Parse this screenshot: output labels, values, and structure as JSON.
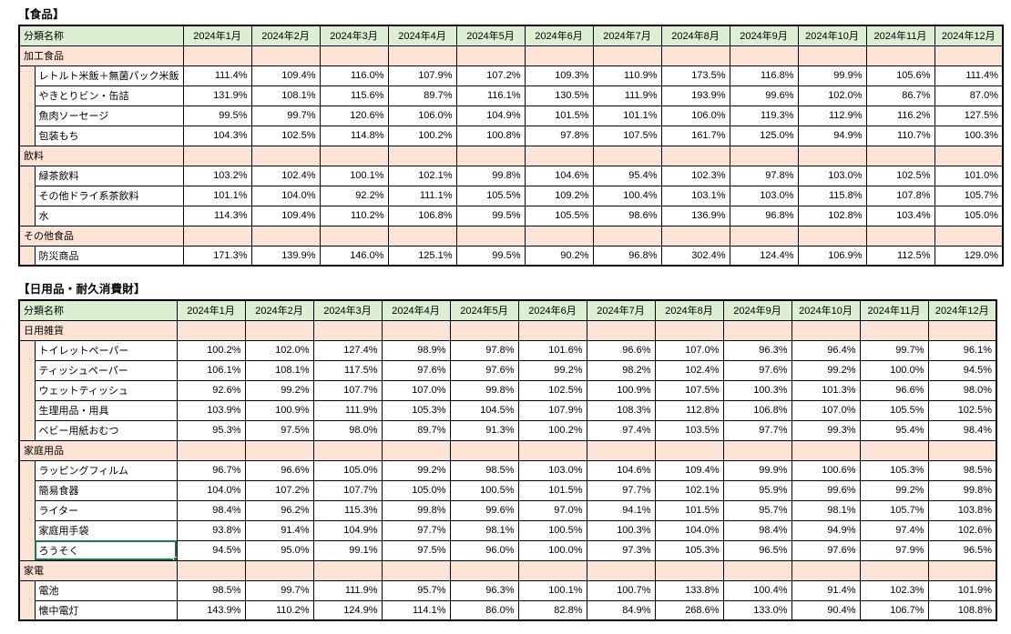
{
  "colors": {
    "header_green": "#DCEFD2",
    "category_pink": "#FCE3D6",
    "selection_green": "#217346",
    "grid_border": "#000000",
    "background": "#FFFFFF"
  },
  "columns": {
    "name_header": "分類名称",
    "months": [
      "2024年1月",
      "2024年2月",
      "2024年3月",
      "2024年4月",
      "2024年5月",
      "2024年6月",
      "2024年7月",
      "2024年8月",
      "2024年9月",
      "2024年10月",
      "2024年11月",
      "2024年12月"
    ]
  },
  "tables": [
    {
      "key": "food",
      "title": "【食品】",
      "sections": [
        {
          "category": "加工食品",
          "items": [
            {
              "name": "レトルト米飯＋無菌パック米飯",
              "values": [
                "111.4%",
                "109.4%",
                "116.0%",
                "107.9%",
                "107.2%",
                "109.3%",
                "110.9%",
                "173.5%",
                "116.8%",
                "99.9%",
                "105.6%",
                "111.4%"
              ]
            },
            {
              "name": "やきとりビン・缶詰",
              "values": [
                "131.9%",
                "108.1%",
                "115.6%",
                "89.7%",
                "116.1%",
                "130.5%",
                "111.9%",
                "193.9%",
                "99.6%",
                "102.0%",
                "86.7%",
                "87.0%"
              ]
            },
            {
              "name": "魚肉ソーセージ",
              "values": [
                "99.5%",
                "99.7%",
                "120.6%",
                "106.0%",
                "104.9%",
                "101.5%",
                "101.1%",
                "106.0%",
                "119.3%",
                "112.9%",
                "116.2%",
                "127.5%"
              ]
            },
            {
              "name": "包装もち",
              "values": [
                "104.3%",
                "102.5%",
                "114.8%",
                "100.2%",
                "100.8%",
                "97.8%",
                "107.5%",
                "161.7%",
                "125.0%",
                "94.9%",
                "110.7%",
                "100.3%"
              ]
            }
          ]
        },
        {
          "category": "飲料",
          "items": [
            {
              "name": "緑茶飲料",
              "values": [
                "103.2%",
                "102.4%",
                "100.1%",
                "102.1%",
                "99.8%",
                "104.6%",
                "95.4%",
                "102.3%",
                "97.8%",
                "103.0%",
                "102.5%",
                "101.0%"
              ]
            },
            {
              "name": "その他ドライ系茶飲料",
              "values": [
                "101.1%",
                "104.0%",
                "92.2%",
                "111.1%",
                "105.5%",
                "109.2%",
                "100.4%",
                "103.1%",
                "103.0%",
                "115.8%",
                "107.8%",
                "105.7%"
              ]
            },
            {
              "name": "水",
              "values": [
                "114.3%",
                "109.4%",
                "110.2%",
                "106.8%",
                "99.5%",
                "105.5%",
                "98.6%",
                "136.9%",
                "96.8%",
                "102.8%",
                "103.4%",
                "105.0%"
              ]
            }
          ]
        },
        {
          "category": "その他食品",
          "items": [
            {
              "name": "防災商品",
              "values": [
                "171.3%",
                "139.9%",
                "146.0%",
                "125.1%",
                "99.5%",
                "90.2%",
                "96.8%",
                "302.4%",
                "124.4%",
                "106.9%",
                "112.5%",
                "129.0%"
              ]
            }
          ]
        }
      ]
    },
    {
      "key": "daily-goods",
      "title": "【日用品・耐久消費財】",
      "sections": [
        {
          "category": "日用雑貨",
          "items": [
            {
              "name": "トイレットペーパー",
              "values": [
                "100.2%",
                "102.0%",
                "127.4%",
                "98.9%",
                "97.8%",
                "101.6%",
                "96.6%",
                "107.0%",
                "96.3%",
                "96.4%",
                "99.7%",
                "96.1%"
              ]
            },
            {
              "name": "ティッシュペーパー",
              "values": [
                "106.1%",
                "108.1%",
                "117.5%",
                "97.6%",
                "97.6%",
                "99.2%",
                "98.2%",
                "102.4%",
                "97.6%",
                "99.2%",
                "100.0%",
                "94.5%"
              ]
            },
            {
              "name": "ウェットティッシュ",
              "values": [
                "92.6%",
                "99.2%",
                "107.7%",
                "107.0%",
                "99.8%",
                "102.5%",
                "100.9%",
                "107.5%",
                "100.3%",
                "101.3%",
                "96.6%",
                "98.0%"
              ]
            },
            {
              "name": "生理用品・用具",
              "values": [
                "103.9%",
                "100.9%",
                "111.9%",
                "105.3%",
                "104.5%",
                "107.9%",
                "108.3%",
                "112.8%",
                "106.8%",
                "107.0%",
                "105.5%",
                "102.5%"
              ]
            },
            {
              "name": "ベビー用紙おむつ",
              "values": [
                "95.3%",
                "97.5%",
                "98.0%",
                "89.7%",
                "91.3%",
                "100.2%",
                "97.4%",
                "103.5%",
                "97.7%",
                "99.3%",
                "95.4%",
                "98.4%"
              ]
            }
          ]
        },
        {
          "category": "家庭用品",
          "items": [
            {
              "name": "ラッピングフィルム",
              "values": [
                "96.7%",
                "96.6%",
                "105.0%",
                "99.2%",
                "98.5%",
                "103.0%",
                "104.6%",
                "109.4%",
                "99.9%",
                "100.6%",
                "105.3%",
                "98.5%"
              ]
            },
            {
              "name": "簡易食器",
              "values": [
                "104.0%",
                "107.2%",
                "107.7%",
                "105.0%",
                "100.5%",
                "101.5%",
                "97.7%",
                "102.1%",
                "95.9%",
                "99.6%",
                "99.2%",
                "99.8%"
              ]
            },
            {
              "name": "ライター",
              "values": [
                "98.4%",
                "96.2%",
                "115.3%",
                "99.8%",
                "99.6%",
                "97.0%",
                "94.1%",
                "101.5%",
                "95.7%",
                "98.1%",
                "105.7%",
                "103.8%"
              ]
            },
            {
              "name": "家庭用手袋",
              "values": [
                "93.8%",
                "91.4%",
                "104.9%",
                "97.7%",
                "98.1%",
                "100.5%",
                "100.3%",
                "104.0%",
                "98.4%",
                "94.9%",
                "97.4%",
                "102.6%"
              ]
            },
            {
              "name": "ろうそく",
              "selected": true,
              "values": [
                "94.5%",
                "95.0%",
                "99.1%",
                "97.5%",
                "96.0%",
                "100.0%",
                "97.3%",
                "105.3%",
                "96.5%",
                "97.6%",
                "97.9%",
                "96.5%"
              ]
            }
          ]
        },
        {
          "category": "家電",
          "items": [
            {
              "name": "電池",
              "values": [
                "98.5%",
                "99.7%",
                "111.9%",
                "95.7%",
                "96.3%",
                "100.1%",
                "100.7%",
                "133.8%",
                "100.4%",
                "91.4%",
                "102.3%",
                "101.9%"
              ]
            },
            {
              "name": "懐中電灯",
              "values": [
                "143.9%",
                "110.2%",
                "124.9%",
                "114.1%",
                "86.0%",
                "82.8%",
                "84.9%",
                "268.6%",
                "133.0%",
                "90.4%",
                "106.7%",
                "108.8%"
              ]
            }
          ]
        }
      ]
    }
  ],
  "layout_values": {
    "indent_col_width": 17,
    "name_col_width": 156,
    "month_col_width": 75
  }
}
